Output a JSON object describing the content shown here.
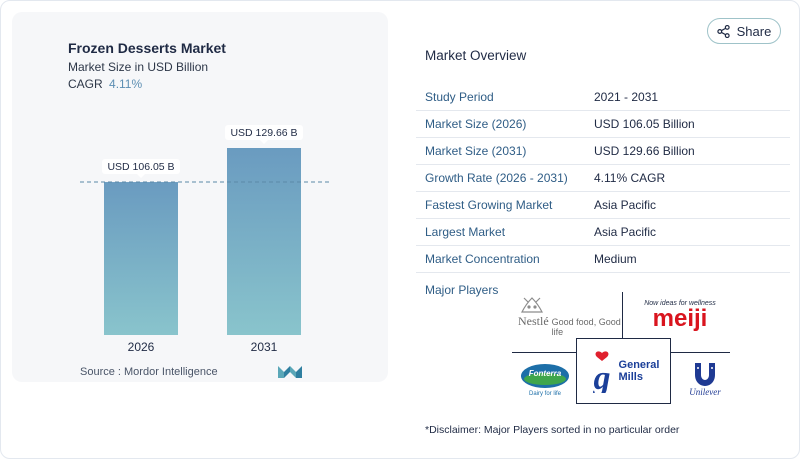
{
  "share": {
    "label": "Share"
  },
  "chart": {
    "title": "Frozen Desserts Market",
    "subtitle": "Market Size in USD Billion",
    "cagr_label": "CAGR",
    "cagr_value": "4.11%",
    "source": "Source :  Mordor Intelligence"
  },
  "chart_data": {
    "type": "bar",
    "categories": [
      "2026",
      "2031"
    ],
    "values": [
      106.05,
      129.66
    ],
    "data_labels": [
      "USD 106.05 B",
      "USD 129.66 B"
    ],
    "title": "Frozen Desserts Market",
    "subtitle": "Market Size in USD Billion",
    "xlabel": "",
    "ylabel": "",
    "ylim": [
      0,
      129.66
    ],
    "reference_line": 106.05,
    "grid": false,
    "colors": {
      "bar_top": "#6a9bc0",
      "bar_bottom": "#89c4cc",
      "ref_line": "#5b8aa8"
    }
  },
  "overview": {
    "title": "Market Overview",
    "rows": [
      {
        "label": "Study Period",
        "value": "2021 - 2031"
      },
      {
        "label": "Market Size (2026)",
        "value": "USD 106.05 Billion"
      },
      {
        "label": "Market Size (2031)",
        "value": "USD 129.66 Billion"
      },
      {
        "label": "Growth Rate (2026 - 2031)",
        "value": "4.11% CAGR"
      },
      {
        "label": "Fastest Growing Market",
        "value": "Asia Pacific"
      },
      {
        "label": "Largest Market",
        "value": "Asia Pacific"
      },
      {
        "label": "Market Concentration",
        "value": "Medium"
      }
    ]
  },
  "players": {
    "label": "Major Players",
    "nestle": {
      "name": "Nestlé",
      "tagline": "Good food, Good life"
    },
    "meiji": {
      "name": "meiji",
      "tagline": "Now ideas for wellness"
    },
    "fonterra": {
      "name": "Fonterra",
      "tagline": "Dairy for life"
    },
    "general_mills": {
      "line1": "General",
      "line2": "Mills"
    },
    "unilever": {
      "name": "Unilever"
    }
  },
  "disclaimer": "*Disclaimer: Major Players sorted in no particular order"
}
